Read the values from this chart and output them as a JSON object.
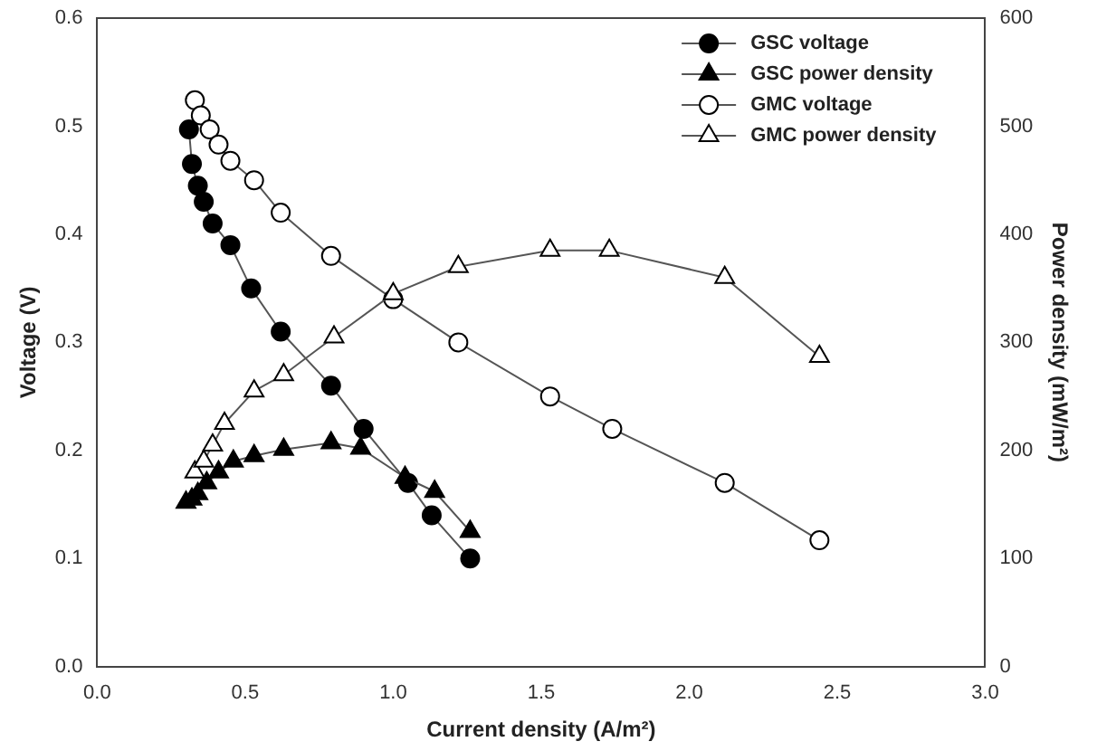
{
  "chart_data": {
    "type": "line",
    "xlabel": "Current density (A/m²)",
    "ylabel": "Voltage (V)",
    "y2label": "Power density (mW/m²)",
    "xlim": [
      0,
      3
    ],
    "xticks": [
      {
        "value": 0,
        "label": "0.0"
      },
      {
        "value": 0.5,
        "label": "0.5"
      },
      {
        "value": 1,
        "label": "1.0"
      },
      {
        "value": 1.5,
        "label": "1.5"
      },
      {
        "value": 2,
        "label": "2.0"
      },
      {
        "value": 2.5,
        "label": "2.5"
      },
      {
        "value": 3,
        "label": "3.0"
      }
    ],
    "ylim": [
      0,
      0.6
    ],
    "yticks": [
      {
        "value": 0,
        "label": "0.0"
      },
      {
        "value": 0.1,
        "label": "0.1"
      },
      {
        "value": 0.2,
        "label": "0.2"
      },
      {
        "value": 0.3,
        "label": "0.3"
      },
      {
        "value": 0.4,
        "label": "0.4"
      },
      {
        "value": 0.5,
        "label": "0.5"
      },
      {
        "value": 0.6,
        "label": "0.6"
      }
    ],
    "y2lim": [
      0,
      600
    ],
    "y2ticks": [
      0,
      100,
      200,
      300,
      400,
      500,
      600
    ],
    "grid": false,
    "legend": "top right",
    "line_style": "solid",
    "series": [
      {
        "name": "GSC voltage",
        "color": "#000000",
        "marker": "circle",
        "x": [
          0.31,
          0.32,
          0.34,
          0.36,
          0.39,
          0.45,
          0.52,
          0.62,
          0.79,
          0.9,
          1.05,
          1.13,
          1.26
        ],
        "values": [
          0.497,
          0.465,
          0.445,
          0.43,
          0.41,
          0.39,
          0.35,
          0.31,
          0.26,
          0.22,
          0.17,
          0.14,
          0.1
        ]
      },
      {
        "name": "GSC power density",
        "color": "#000000",
        "marker": "triangle",
        "axis": "y2",
        "x": [
          0.3,
          0.32,
          0.34,
          0.37,
          0.41,
          0.46,
          0.53,
          0.63,
          0.79,
          0.89,
          1.04,
          1.14,
          1.26
        ],
        "values": [
          152,
          155,
          160,
          170,
          180,
          190,
          195,
          201,
          207,
          202,
          175,
          162,
          125
        ]
      },
      {
        "name": "GMC voltage",
        "color": "#ffffff",
        "marker": "circle",
        "x": [
          0.33,
          0.35,
          0.38,
          0.41,
          0.45,
          0.53,
          0.62,
          0.79,
          1.0,
          1.22,
          1.53,
          1.74,
          2.12,
          2.44
        ],
        "values": [
          0.524,
          0.51,
          0.497,
          0.483,
          0.468,
          0.45,
          0.42,
          0.38,
          0.34,
          0.3,
          0.25,
          0.22,
          0.17,
          0.117
        ]
      },
      {
        "name": "GMC power density",
        "color": "#ffffff",
        "marker": "triangle",
        "axis": "y2",
        "x": [
          0.33,
          0.36,
          0.39,
          0.43,
          0.53,
          0.63,
          0.8,
          1.0,
          1.22,
          1.53,
          1.73,
          2.12,
          2.44
        ],
        "values": [
          180,
          190,
          205,
          225,
          255,
          270,
          305,
          345,
          370,
          385,
          385,
          360,
          287
        ]
      }
    ]
  }
}
